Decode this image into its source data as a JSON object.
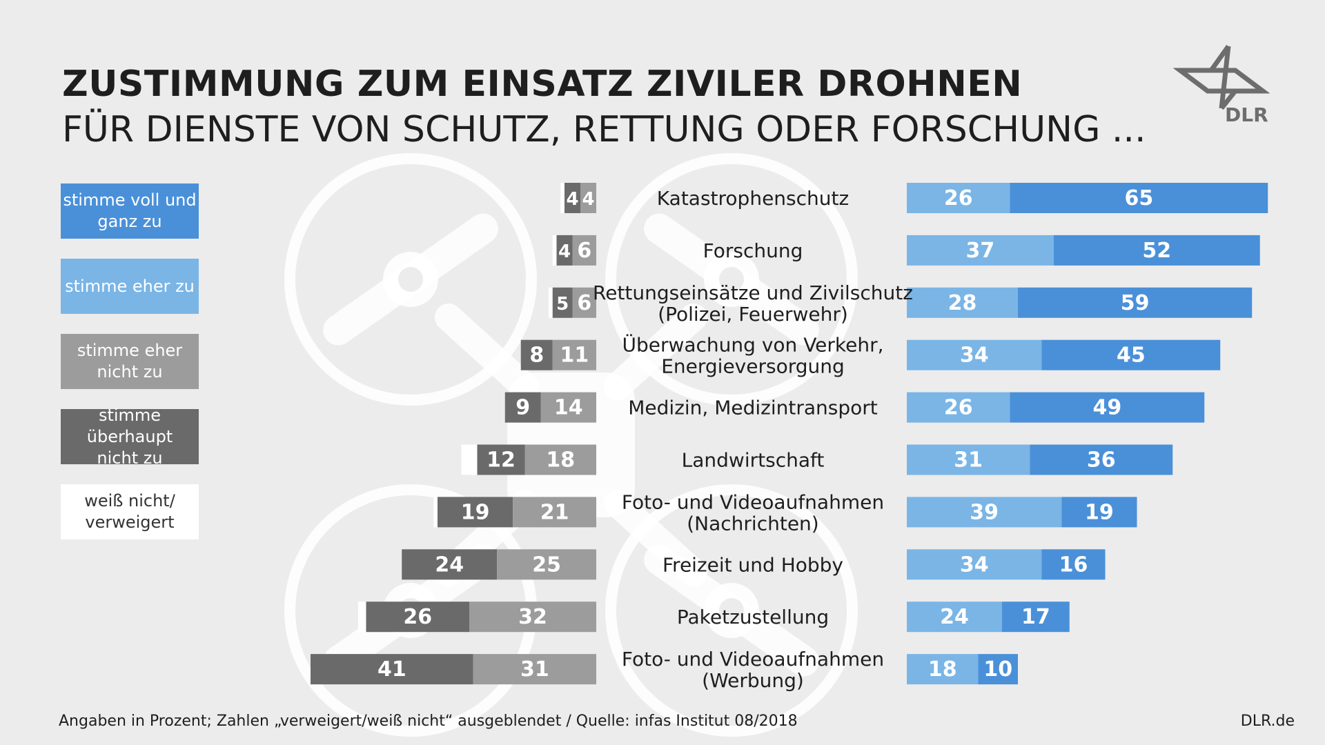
{
  "title": "ZUSTIMMUNG ZUM EINSATZ ZIVILER DROHNEN",
  "subtitle": "FÜR DIENSTE VON SCHUTZ, RETTUNG ODER FORSCHUNG ...",
  "logo_text": "DLR",
  "legend": [
    {
      "label": "stimme voll und\nganz zu",
      "color": "#4a90d9",
      "text_color": "#ffffff"
    },
    {
      "label": "stimme eher zu",
      "color": "#7ab5e6",
      "text_color": "#ffffff"
    },
    {
      "label": "stimme eher\nnicht zu",
      "color": "#9c9c9c",
      "text_color": "#ffffff"
    },
    {
      "label": "stimme überhaupt\nnicht zu",
      "color": "#6a6a6a",
      "text_color": "#ffffff"
    },
    {
      "label": "weiß nicht/\nverweigert",
      "color": "#ffffff",
      "text_color": "#333333"
    }
  ],
  "footer": {
    "source": "Angaben in Prozent; Zahlen „verweigert/weiß nicht“ ausgeblendet / Quelle: infas Institut 08/2018",
    "site": "DLR.de"
  },
  "chart_data": {
    "type": "bar",
    "orientation": "diverging-horizontal",
    "unit": "Prozent",
    "categories": [
      "Katastrophenschutz",
      "Forschung",
      "Rettungseinsätze und Zivilschutz\n(Polizei, Feuerwehr)",
      "Überwachung von Verkehr,\nEnergieversorgung",
      "Medizin, Medizintransport",
      "Landwirtschaft",
      "Foto- und Videoaufnahmen\n(Nachrichten)",
      "Freizeit und Hobby",
      "Paketzustellung",
      "Foto- und Videoaufnahmen\n(Werbung)"
    ],
    "series": [
      {
        "name": "stimme überhaupt nicht zu",
        "side": "left",
        "color": "#6a6a6a",
        "values": [
          4,
          4,
          5,
          8,
          9,
          12,
          19,
          24,
          26,
          41
        ]
      },
      {
        "name": "stimme eher nicht zu",
        "side": "left",
        "color": "#9c9c9c",
        "values": [
          4,
          6,
          6,
          11,
          14,
          18,
          21,
          25,
          32,
          31
        ]
      },
      {
        "name": "stimme eher zu",
        "side": "right",
        "color": "#7ab5e6",
        "values": [
          26,
          37,
          28,
          34,
          26,
          31,
          39,
          34,
          24,
          18
        ]
      },
      {
        "name": "stimme voll und ganz zu",
        "side": "right",
        "color": "#4a90d9",
        "values": [
          65,
          52,
          59,
          45,
          49,
          36,
          19,
          16,
          17,
          10
        ]
      }
    ],
    "weiss_nicht_visible": [
      1,
      1,
      1,
      0,
      0,
      4,
      1,
      0,
      2,
      0
    ]
  }
}
